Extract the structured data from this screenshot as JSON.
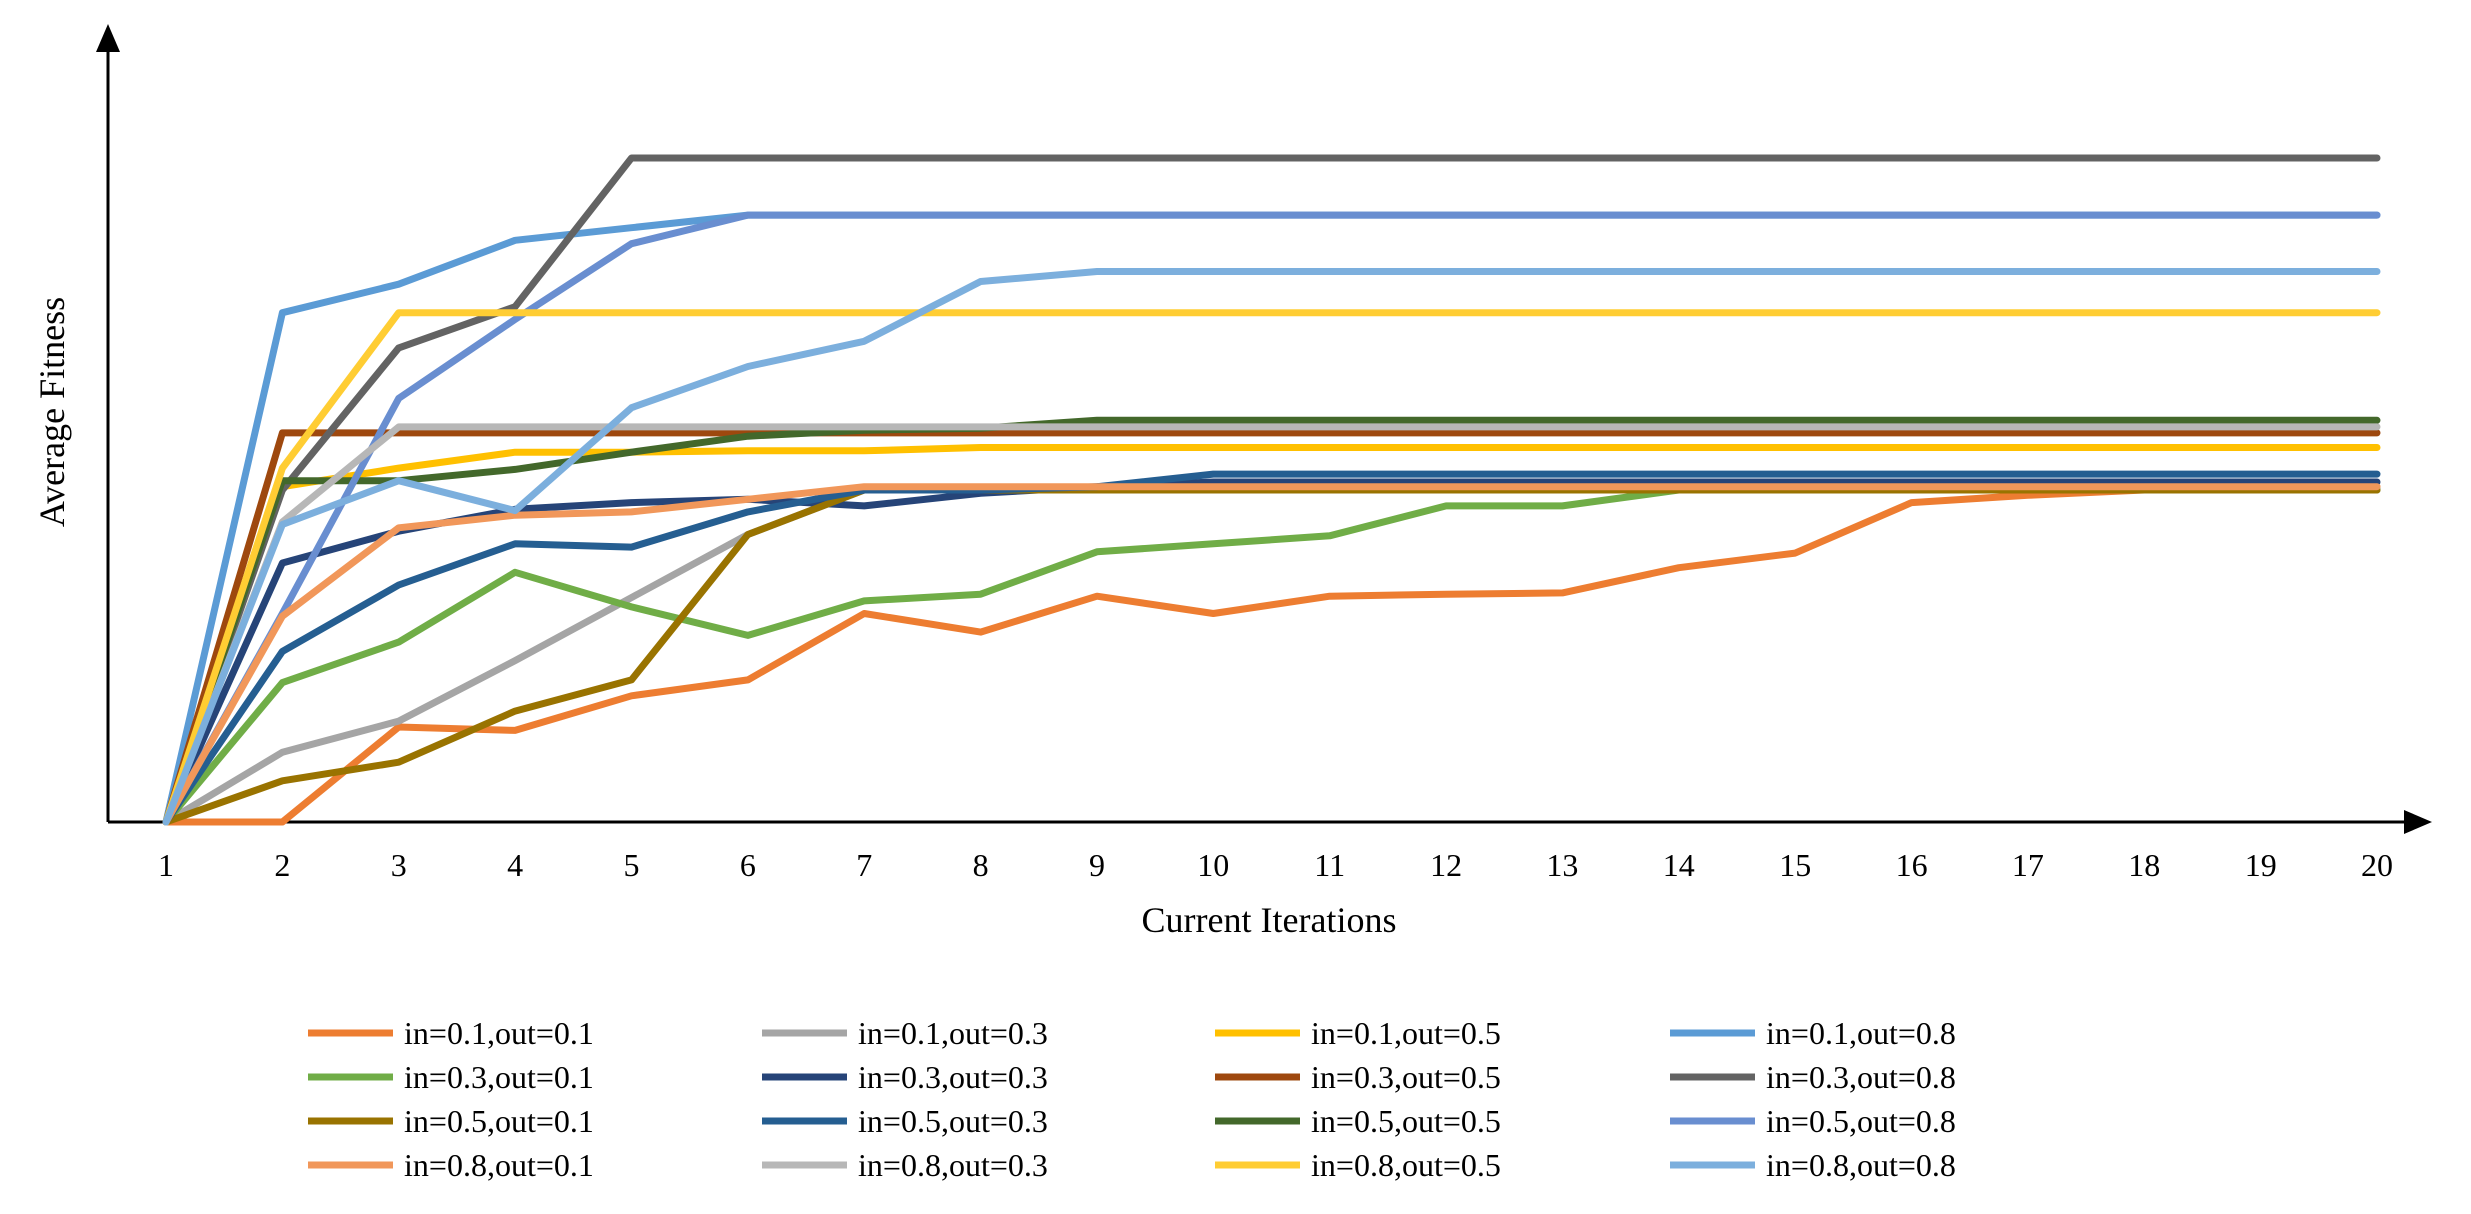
{
  "chart_data": {
    "type": "line",
    "title": "",
    "xlabel": "Current Iterations",
    "ylabel": "Average Fitness",
    "categories": [
      "1",
      "2",
      "3",
      "4",
      "5",
      "6",
      "7",
      "8",
      "9",
      "10",
      "11",
      "12",
      "13",
      "14",
      "15",
      "16",
      "17",
      "18",
      "19",
      "20"
    ],
    "ylim": [
      0,
      100
    ],
    "y_ticks_shown": false,
    "grid": false,
    "legend_position": "bottom",
    "series": [
      {
        "name": "in=0.1,out=0.1",
        "color": "#ED7D31",
        "values": [
          0,
          0,
          14.3,
          13.8,
          19.0,
          21.4,
          31.4,
          28.6,
          34.0,
          31.4,
          34.0,
          34.3,
          34.5,
          38.3,
          40.5,
          48.1,
          49.2,
          50.0,
          50.5,
          50.5
        ]
      },
      {
        "name": "in=0.1,out=0.3",
        "color": "#A5A5A5",
        "values": [
          0,
          10.5,
          15.2,
          24.3,
          33.8,
          43.3,
          50.0,
          50.0,
          50.0,
          50.0,
          50.2,
          50.2,
          50.2,
          50.2,
          50.2,
          50.2,
          50.2,
          50.2,
          50.2,
          50.2
        ]
      },
      {
        "name": "in=0.1,out=0.5",
        "color": "#FFC000",
        "values": [
          0,
          50.5,
          53.3,
          55.7,
          55.7,
          55.9,
          55.9,
          56.4,
          56.4,
          56.4,
          56.4,
          56.4,
          56.4,
          56.4,
          56.4,
          56.4,
          56.4,
          56.4,
          56.4,
          56.4
        ]
      },
      {
        "name": "in=0.1,out=0.8",
        "color": "#5B9BD5",
        "values": [
          0,
          76.7,
          81.0,
          87.6,
          89.5,
          91.4,
          91.4,
          91.4,
          91.4,
          91.4,
          91.4,
          91.4,
          91.4,
          91.4,
          91.4,
          91.4,
          91.4,
          91.4,
          91.4,
          91.4
        ]
      },
      {
        "name": "in=0.3,out=0.1",
        "color": "#70AD47",
        "values": [
          0,
          21.0,
          27.1,
          37.6,
          32.4,
          28.1,
          33.3,
          34.3,
          40.7,
          41.9,
          43.1,
          47.6,
          47.6,
          50.0,
          50.0,
          50.0,
          50.0,
          50.0,
          50.0,
          50.0
        ]
      },
      {
        "name": "in=0.3,out=0.3",
        "color": "#264478",
        "values": [
          0,
          39.0,
          43.8,
          47.1,
          48.1,
          48.6,
          47.6,
          49.5,
          50.5,
          51.2,
          51.2,
          51.2,
          51.2,
          51.2,
          51.2,
          51.2,
          51.2,
          51.2,
          51.2,
          51.2
        ]
      },
      {
        "name": "in=0.3,out=0.5",
        "color": "#9E480E",
        "values": [
          0,
          58.6,
          58.6,
          58.6,
          58.6,
          58.6,
          58.6,
          58.6,
          58.6,
          58.6,
          58.6,
          58.6,
          58.6,
          58.6,
          58.6,
          58.6,
          58.6,
          58.6,
          58.6,
          58.6
        ]
      },
      {
        "name": "in=0.3,out=0.8",
        "color": "#636363",
        "values": [
          0,
          50.0,
          71.4,
          77.6,
          100,
          100,
          100,
          100,
          100,
          100,
          100,
          100,
          100,
          100,
          100,
          100,
          100,
          100,
          100,
          100
        ]
      },
      {
        "name": "in=0.5,out=0.1",
        "color": "#997300",
        "values": [
          0,
          6.2,
          9.0,
          16.7,
          21.4,
          43.3,
          50.0,
          50.0,
          50.0,
          50.0,
          50.0,
          50.0,
          50.0,
          50.0,
          50.0,
          50.0,
          50.0,
          50.0,
          50.0,
          50.0
        ]
      },
      {
        "name": "in=0.5,out=0.3",
        "color": "#255E91",
        "values": [
          0,
          25.7,
          35.7,
          41.9,
          41.4,
          46.7,
          50.0,
          50.0,
          50.5,
          52.4,
          52.4,
          52.4,
          52.4,
          52.4,
          52.4,
          52.4,
          52.4,
          52.4,
          52.4,
          52.4
        ]
      },
      {
        "name": "in=0.5,out=0.5",
        "color": "#43682B",
        "values": [
          0,
          51.4,
          51.4,
          53.1,
          55.7,
          58.1,
          59.0,
          59.3,
          60.5,
          60.5,
          60.5,
          60.5,
          60.5,
          60.5,
          60.5,
          60.5,
          60.5,
          60.5,
          60.5,
          60.5
        ]
      },
      {
        "name": "in=0.5,out=0.8",
        "color": "#698ED0",
        "values": [
          0,
          31.4,
          63.8,
          75.7,
          87.1,
          91.4,
          91.4,
          91.4,
          91.4,
          91.4,
          91.4,
          91.4,
          91.4,
          91.4,
          91.4,
          91.4,
          91.4,
          91.4,
          91.4,
          91.4
        ]
      },
      {
        "name": "in=0.8,out=0.1",
        "color": "#F1975A",
        "values": [
          0,
          31.0,
          44.3,
          46.2,
          46.7,
          48.6,
          50.5,
          50.5,
          50.5,
          50.5,
          50.5,
          50.5,
          50.5,
          50.5,
          50.5,
          50.5,
          50.5,
          50.5,
          50.5,
          50.5
        ]
      },
      {
        "name": "in=0.8,out=0.3",
        "color": "#B7B7B7",
        "values": [
          0,
          45.2,
          59.5,
          59.5,
          59.5,
          59.5,
          59.5,
          59.5,
          59.5,
          59.5,
          59.5,
          59.5,
          59.5,
          59.5,
          59.5,
          59.5,
          59.5,
          59.5,
          59.5,
          59.5
        ]
      },
      {
        "name": "in=0.8,out=0.5",
        "color": "#FFCD33",
        "values": [
          0,
          53.3,
          76.7,
          76.7,
          76.7,
          76.7,
          76.7,
          76.7,
          76.7,
          76.7,
          76.7,
          76.7,
          76.7,
          76.7,
          76.7,
          76.7,
          76.7,
          76.7,
          76.7,
          76.7
        ]
      },
      {
        "name": "in=0.8,out=0.8",
        "color": "#7CAFDD",
        "values": [
          0,
          44.8,
          51.4,
          46.9,
          62.4,
          68.6,
          72.4,
          81.4,
          82.9,
          82.9,
          82.9,
          82.9,
          82.9,
          82.9,
          82.9,
          82.9,
          82.9,
          82.9,
          82.9,
          82.9
        ]
      }
    ]
  }
}
